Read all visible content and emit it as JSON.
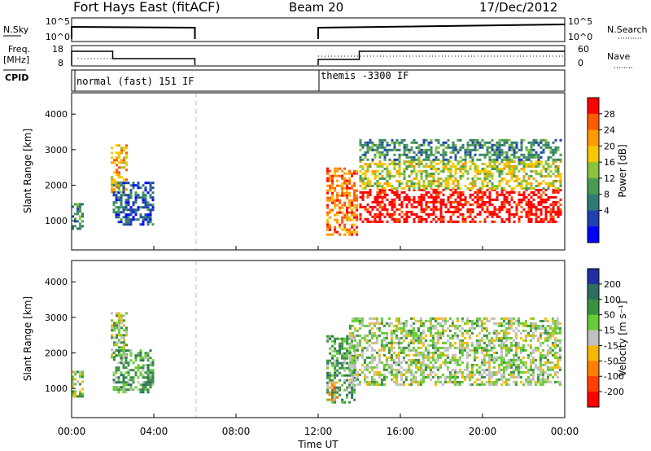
{
  "header": {
    "station": "Fort Hays East (fitACF)",
    "beam": "Beam 20",
    "date": "17/Dec/2012"
  },
  "summary_panel": {
    "nsky_label": "N.Sky",
    "nsky_ticks": [
      "10^5",
      "10^0"
    ],
    "nsearch_label": "N.Search",
    "nsearch_ticks": [
      "10^5",
      "10^0"
    ],
    "freq_label": "Freq.",
    "freq_unit": "[MHz]",
    "freq_ticks": [
      "18",
      "8"
    ],
    "nave_label": "Nave",
    "nave_ticks": [
      "60",
      "0"
    ],
    "cpid_label": "CPID",
    "cpid_segments": [
      {
        "label": "normal (fast) 151 IF",
        "start_h": 0,
        "end_h": 6
      },
      {
        "label": "themis -3300 IF",
        "start_h": 12,
        "end_h": 24
      }
    ]
  },
  "colorbars": {
    "power": {
      "label": "Power [dB]",
      "ticks": [
        "28",
        "24",
        "20",
        "16",
        "12",
        "8",
        "4"
      ],
      "colors": [
        "#ff0000",
        "#ff5a00",
        "#ff9900",
        "#f7c800",
        "#8ac43e",
        "#4a9a55",
        "#2e7a75",
        "#2040b0",
        "#0000ff"
      ]
    },
    "velocity": {
      "label": "Velocity [m s⁻¹]",
      "ticks": [
        "200",
        "100",
        "50",
        "15",
        "-15",
        "-50",
        "-100",
        "-200"
      ],
      "colors": [
        "#2030a0",
        "#2e6e60",
        "#3a9040",
        "#66cc33",
        "#c0c0c0",
        "#f7b800",
        "#ff8000",
        "#ff4000",
        "#ff0000"
      ]
    }
  },
  "chart_data": [
    {
      "type": "heatmap",
      "name": "power",
      "ylabel": "Slant Range [km]",
      "xlim_hours": [
        0,
        24
      ],
      "ylim_km": [
        180,
        4600
      ],
      "yticks": [
        1000,
        2000,
        3000,
        4000
      ],
      "regions": [
        {
          "t0": 0.0,
          "t1": 0.5,
          "r0": 800,
          "r1": 1500,
          "level": 6
        },
        {
          "t0": 1.9,
          "t1": 2.7,
          "r0": 1800,
          "r1": 3150,
          "level": 3
        },
        {
          "t0": 2.0,
          "t1": 4.0,
          "r0": 900,
          "r1": 2100,
          "level": 7
        },
        {
          "t0": 12.4,
          "t1": 13.9,
          "r0": 600,
          "r1": 2500,
          "level": 2
        },
        {
          "t0": 14.0,
          "t1": 23.8,
          "r0": 1000,
          "r1": 1900,
          "level": 0
        },
        {
          "t0": 14.0,
          "t1": 23.8,
          "r0": 1900,
          "r1": 2700,
          "level": 4
        },
        {
          "t0": 14.0,
          "t1": 23.8,
          "r0": 2700,
          "r1": 3300,
          "level": 6
        }
      ]
    },
    {
      "type": "heatmap",
      "name": "velocity",
      "ylabel": "Slant Range [km]",
      "xlim_hours": [
        0,
        24
      ],
      "ylim_km": [
        180,
        4600
      ],
      "yticks": [
        1000,
        2000,
        3000,
        4000
      ],
      "regions": [
        {
          "t0": 0.0,
          "t1": 0.5,
          "r0": 800,
          "r1": 1500,
          "level": 4
        },
        {
          "t0": 1.9,
          "t1": 2.7,
          "r0": 1800,
          "r1": 3150,
          "level": 4
        },
        {
          "t0": 2.0,
          "t1": 4.0,
          "r0": 900,
          "r1": 2100,
          "level": 3
        },
        {
          "t0": 12.4,
          "t1": 13.8,
          "r0": 600,
          "r1": 2500,
          "level": 3
        },
        {
          "t0": 12.5,
          "t1": 12.9,
          "r0": 700,
          "r1": 1200,
          "level": 6
        },
        {
          "t0": 13.5,
          "t1": 23.8,
          "r0": 1100,
          "r1": 3000,
          "level": 4
        }
      ]
    }
  ],
  "xaxis": {
    "ticks": [
      "00:00",
      "04:00",
      "08:00",
      "12:00",
      "16:00",
      "20:00",
      "00:00"
    ],
    "label": "Time UT"
  }
}
